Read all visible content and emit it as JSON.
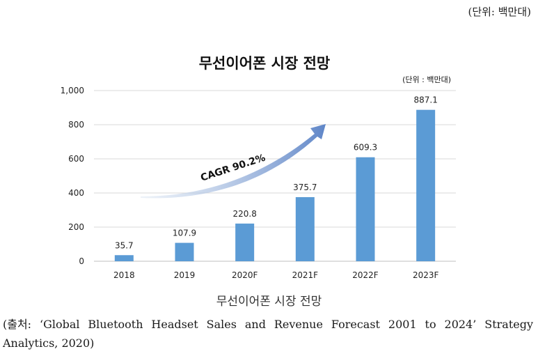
{
  "unit_top": "(단위: 백만대)",
  "caption": "무선이어폰 시장 전망",
  "source": "(출처: ‘Global Bluetooth Headset Sales and Revenue Forecast 2001 to 2024’ Strategy Analytics, 2020)",
  "chart_data": {
    "type": "bar",
    "title": "무선이어폰 시장 전망",
    "unit": "(단위 : 백만대)",
    "categories": [
      "2018",
      "2019",
      "2020F",
      "2021F",
      "2022F",
      "2023F"
    ],
    "values": [
      35.7,
      107.9,
      220.8,
      375.7,
      609.3,
      887.1
    ],
    "value_labels": [
      "35.7",
      "107.9",
      "220.8",
      "375.7",
      "609.3",
      "887.1"
    ],
    "ylim": [
      0,
      1000
    ],
    "yticks": [
      "0",
      "200",
      "400",
      "600",
      "800",
      "1,000"
    ],
    "grid": true,
    "bar_color": "#5b9bd5",
    "annotation": "CAGR 90.2%"
  }
}
